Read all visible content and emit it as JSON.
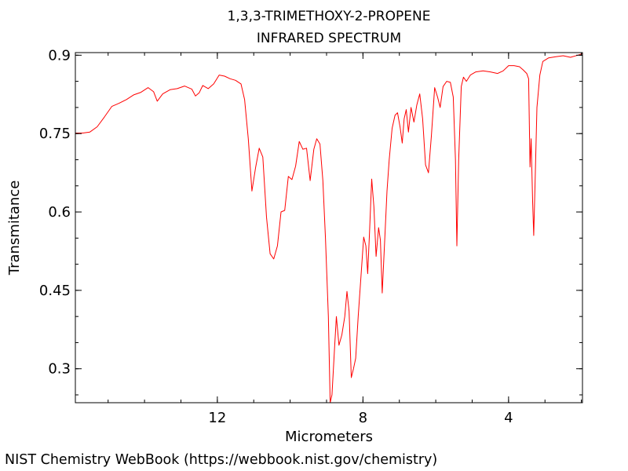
{
  "chart_data": {
    "type": "line",
    "title": "1,3,3-TRIMETHOXY-2-PROPENE",
    "subtitle": "INFRARED SPECTRUM",
    "xlabel": "Micrometers",
    "ylabel": "Transmitance",
    "xlim": [
      15.9,
      1.97
    ],
    "ylim": [
      0.235,
      0.905
    ],
    "x_ticks": [
      12,
      8,
      4
    ],
    "x_tick_labels": [
      "12",
      "8",
      "4"
    ],
    "y_ticks": [
      0.3,
      0.45,
      0.6,
      0.75,
      0.9
    ],
    "y_tick_labels": [
      "0.3",
      "0.45",
      "0.6",
      "0.75",
      "0.9"
    ],
    "grid": false,
    "series": [
      {
        "color": "#ff0000",
        "points": [
          [
            15.9,
            0.751
          ],
          [
            15.7,
            0.751
          ],
          [
            15.5,
            0.753
          ],
          [
            15.3,
            0.763
          ],
          [
            15.1,
            0.782
          ],
          [
            14.9,
            0.802
          ],
          [
            14.7,
            0.808
          ],
          [
            14.5,
            0.815
          ],
          [
            14.3,
            0.824
          ],
          [
            14.1,
            0.829
          ],
          [
            13.9,
            0.838
          ],
          [
            13.75,
            0.83
          ],
          [
            13.65,
            0.812
          ],
          [
            13.5,
            0.826
          ],
          [
            13.3,
            0.834
          ],
          [
            13.1,
            0.836
          ],
          [
            12.9,
            0.841
          ],
          [
            12.7,
            0.835
          ],
          [
            12.6,
            0.822
          ],
          [
            12.5,
            0.828
          ],
          [
            12.4,
            0.842
          ],
          [
            12.25,
            0.836
          ],
          [
            12.1,
            0.845
          ],
          [
            11.95,
            0.862
          ],
          [
            11.8,
            0.86
          ],
          [
            11.65,
            0.855
          ],
          [
            11.5,
            0.852
          ],
          [
            11.35,
            0.845
          ],
          [
            11.25,
            0.815
          ],
          [
            11.15,
            0.74
          ],
          [
            11.05,
            0.64
          ],
          [
            10.95,
            0.685
          ],
          [
            10.85,
            0.722
          ],
          [
            10.75,
            0.705
          ],
          [
            10.65,
            0.59
          ],
          [
            10.55,
            0.52
          ],
          [
            10.45,
            0.51
          ],
          [
            10.35,
            0.535
          ],
          [
            10.25,
            0.6
          ],
          [
            10.15,
            0.603
          ],
          [
            10.05,
            0.668
          ],
          [
            9.95,
            0.662
          ],
          [
            9.85,
            0.688
          ],
          [
            9.75,
            0.735
          ],
          [
            9.65,
            0.72
          ],
          [
            9.55,
            0.722
          ],
          [
            9.45,
            0.66
          ],
          [
            9.35,
            0.72
          ],
          [
            9.27,
            0.74
          ],
          [
            9.18,
            0.73
          ],
          [
            9.1,
            0.66
          ],
          [
            9.03,
            0.55
          ],
          [
            8.95,
            0.4
          ],
          [
            8.9,
            0.235
          ],
          [
            8.85,
            0.25
          ],
          [
            8.78,
            0.34
          ],
          [
            8.73,
            0.4
          ],
          [
            8.66,
            0.345
          ],
          [
            8.58,
            0.365
          ],
          [
            8.5,
            0.4
          ],
          [
            8.44,
            0.448
          ],
          [
            8.38,
            0.41
          ],
          [
            8.32,
            0.283
          ],
          [
            8.26,
            0.3
          ],
          [
            8.2,
            0.32
          ],
          [
            8.13,
            0.4
          ],
          [
            8.05,
            0.48
          ],
          [
            7.98,
            0.552
          ],
          [
            7.92,
            0.535
          ],
          [
            7.87,
            0.482
          ],
          [
            7.82,
            0.56
          ],
          [
            7.76,
            0.663
          ],
          [
            7.7,
            0.61
          ],
          [
            7.64,
            0.515
          ],
          [
            7.57,
            0.57
          ],
          [
            7.52,
            0.546
          ],
          [
            7.47,
            0.445
          ],
          [
            7.4,
            0.55
          ],
          [
            7.34,
            0.64
          ],
          [
            7.28,
            0.7
          ],
          [
            7.2,
            0.76
          ],
          [
            7.12,
            0.785
          ],
          [
            7.05,
            0.79
          ],
          [
            6.98,
            0.762
          ],
          [
            6.92,
            0.732
          ],
          [
            6.87,
            0.778
          ],
          [
            6.81,
            0.796
          ],
          [
            6.75,
            0.753
          ],
          [
            6.68,
            0.8
          ],
          [
            6.6,
            0.772
          ],
          [
            6.52,
            0.805
          ],
          [
            6.44,
            0.826
          ],
          [
            6.36,
            0.778
          ],
          [
            6.28,
            0.69
          ],
          [
            6.2,
            0.675
          ],
          [
            6.12,
            0.745
          ],
          [
            6.03,
            0.838
          ],
          [
            5.95,
            0.82
          ],
          [
            5.88,
            0.8
          ],
          [
            5.8,
            0.84
          ],
          [
            5.7,
            0.85
          ],
          [
            5.6,
            0.848
          ],
          [
            5.52,
            0.82
          ],
          [
            5.46,
            0.7
          ],
          [
            5.42,
            0.535
          ],
          [
            5.37,
            0.7
          ],
          [
            5.3,
            0.84
          ],
          [
            5.24,
            0.858
          ],
          [
            5.16,
            0.85
          ],
          [
            5.05,
            0.862
          ],
          [
            4.9,
            0.868
          ],
          [
            4.7,
            0.87
          ],
          [
            4.5,
            0.868
          ],
          [
            4.3,
            0.865
          ],
          [
            4.15,
            0.87
          ],
          [
            4.0,
            0.88
          ],
          [
            3.85,
            0.88
          ],
          [
            3.7,
            0.878
          ],
          [
            3.6,
            0.872
          ],
          [
            3.5,
            0.865
          ],
          [
            3.45,
            0.855
          ],
          [
            3.41,
            0.686
          ],
          [
            3.38,
            0.74
          ],
          [
            3.34,
            0.62
          ],
          [
            3.31,
            0.555
          ],
          [
            3.27,
            0.66
          ],
          [
            3.22,
            0.8
          ],
          [
            3.14,
            0.862
          ],
          [
            3.06,
            0.888
          ],
          [
            2.9,
            0.895
          ],
          [
            2.7,
            0.897
          ],
          [
            2.5,
            0.899
          ],
          [
            2.3,
            0.896
          ],
          [
            2.1,
            0.9
          ],
          [
            1.97,
            0.903
          ]
        ]
      }
    ]
  },
  "footer": {
    "credit": "NIST Chemistry WebBook (https://webbook.nist.gov/chemistry)"
  }
}
